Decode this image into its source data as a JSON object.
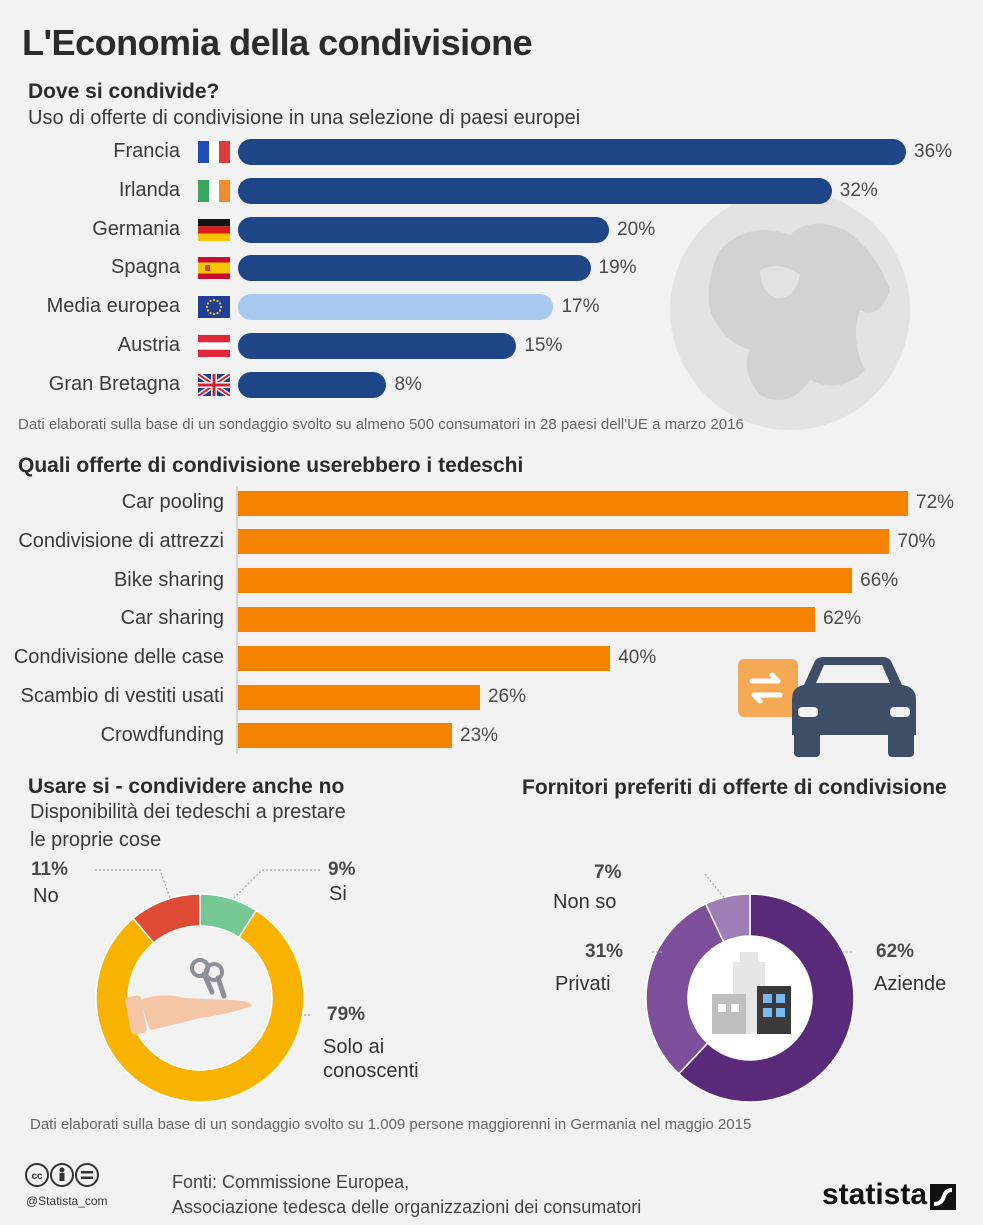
{
  "title": "L'Economia della condivisione",
  "section1": {
    "title": "Dove si condivide?",
    "subtitle": "Uso di offerte di condivisione in una selezione di paesi europei",
    "note": "Dati elaborati sulla base di un sondaggio svolto su almeno 500 consumatori in 28 paesi dell'UE a marzo 2016"
  },
  "section2": {
    "title": "Quali offerte di condivisione userebbero i tedeschi"
  },
  "section3": {
    "title": "Usare si - condividere anche no",
    "subtitle_line1": "Disponibilità dei tedeschi a prestare",
    "subtitle_line2": "le proprie cose"
  },
  "section4": {
    "title": "Fornitori preferiti di offerte di condivisione"
  },
  "footer": {
    "note": "Dati elaborati sulla base di un sondaggio svolto su 1.009 persone maggiorenni in Germania nel maggio 2015",
    "sources_line1": "Fonti: Commissione Europea,",
    "sources_line2": "Associazione tedesca delle organizzazioni dei consumatori",
    "handle": "@Statista_com",
    "brand": "statista"
  },
  "colors": {
    "dark_blue": "#1e4686",
    "light_blue": "#a9c8f0",
    "orange": "#f58300",
    "yellow": "#f8b300",
    "red": "#de4a33",
    "green": "#76c893",
    "purple_dark": "#5a2a7a",
    "purple_mid": "#7d4e9a",
    "purple_light": "#9d7eb5"
  },
  "chart_data": [
    {
      "type": "bar",
      "orientation": "horizontal",
      "title": "Dove si condivide?",
      "subtitle": "Uso di offerte di condivisione in una selezione di paesi europei",
      "categories": [
        "Francia",
        "Irlanda",
        "Germania",
        "Spagna",
        "Media europea",
        "Austria",
        "Gran Bretagna"
      ],
      "values": [
        36,
        32,
        20,
        19,
        17,
        15,
        8
      ],
      "value_labels": [
        "36%",
        "32%",
        "20%",
        "19%",
        "17%",
        "15%",
        "8%"
      ],
      "flags": [
        "flag-france-icon",
        "flag-ireland-icon",
        "flag-germany-icon",
        "flag-spain-icon",
        "flag-eu-icon",
        "flag-austria-icon",
        "flag-uk-icon"
      ],
      "highlight": "Media europea",
      "xlim": [
        0,
        36
      ]
    },
    {
      "type": "bar",
      "orientation": "horizontal",
      "title": "Quali offerte di condivisione userebbero i tedeschi",
      "categories": [
        "Car pooling",
        "Condivisione di attrezzi",
        "Bike sharing",
        "Car sharing",
        "Condivisione delle case",
        "Scambio di vestiti usati",
        "Crowdfunding"
      ],
      "values": [
        72,
        70,
        66,
        62,
        40,
        26,
        23
      ],
      "value_labels": [
        "72%",
        "70%",
        "66%",
        "62%",
        "40%",
        "26%",
        "23%"
      ],
      "xlim": [
        0,
        72
      ]
    },
    {
      "type": "pie",
      "style": "donut",
      "title": "Usare si - condividere anche no",
      "subtitle": "Disponibilità dei tedeschi a prestare le proprie cose",
      "slices": [
        {
          "label": "No",
          "pct_label": "11%",
          "value": 11
        },
        {
          "label": "Si",
          "pct_label": "9%",
          "value": 9
        },
        {
          "label_line1": "Solo ai",
          "label_line2": "conoscenti",
          "pct_label": "79%",
          "value": 79
        }
      ]
    },
    {
      "type": "pie",
      "style": "donut",
      "title": "Fornitori preferiti di offerte di condivisione",
      "slices": [
        {
          "label": "Aziende",
          "pct_label": "62%",
          "value": 62
        },
        {
          "label": "Privati",
          "pct_label": "31%",
          "value": 31
        },
        {
          "label": "Non so",
          "pct_label": "7%",
          "value": 7
        }
      ]
    }
  ]
}
